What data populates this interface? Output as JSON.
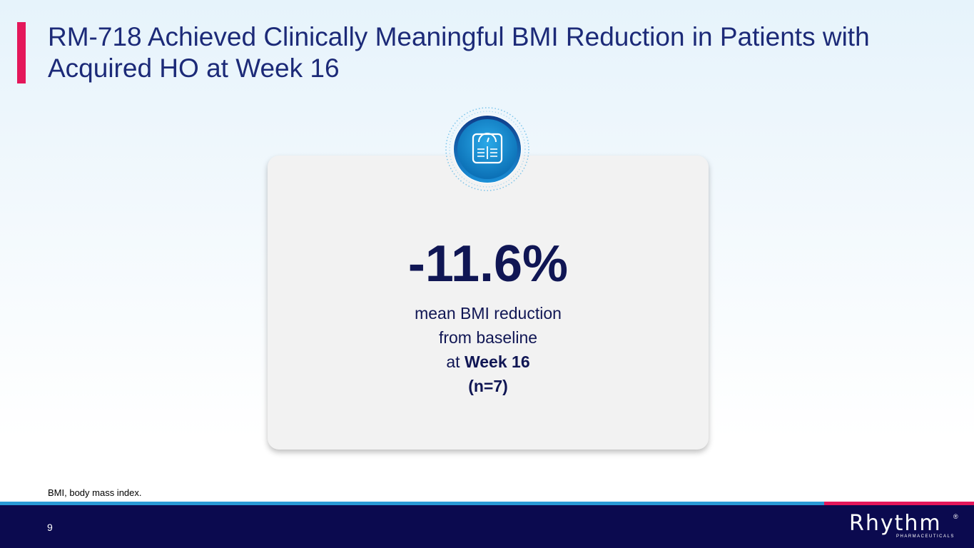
{
  "slide": {
    "title": "RM-718 Achieved Clinically Meaningful BMI Reduction in Patients with Acquired HO at Week 16",
    "stat_value": "-11.6%",
    "stat_line1": "mean BMI reduction",
    "stat_line2": "from baseline",
    "stat_line3_prefix": "at ",
    "stat_line3_bold": "Week 16",
    "stat_n": "(n=7)",
    "footnote": "BMI, body mass index.",
    "page_number": "9",
    "icon": "weighing-scale-icon"
  },
  "brand": {
    "logo_text": "Rhythm",
    "logo_subtext": "PHARMACEUTICALS",
    "logo_registered": "®"
  },
  "colors": {
    "accent_red": "#e4175a",
    "accent_blue": "#2a9ad6",
    "navy": "#0b0a4f",
    "title_blue": "#1c2a78",
    "stat_navy": "#101654"
  }
}
